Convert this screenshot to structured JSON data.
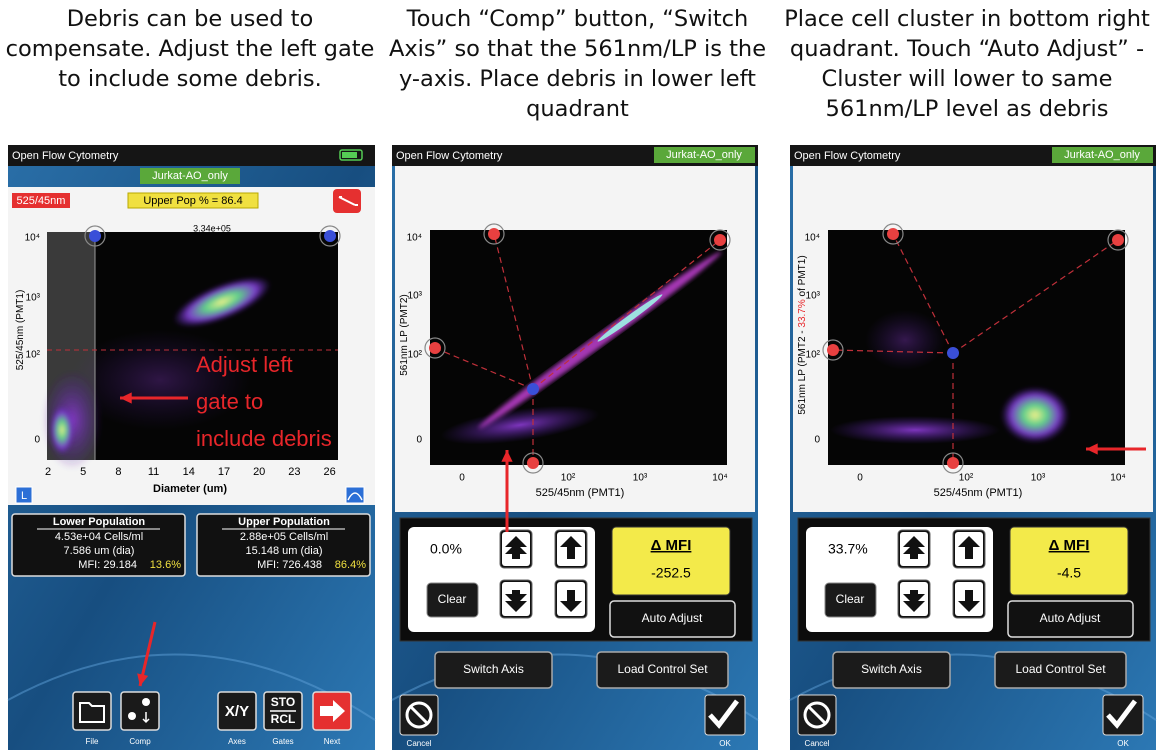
{
  "captions": [
    "Debris can be used to compensate.  Adjust the left gate to include some debris.",
    "Touch “Comp” button, “Switch Axis” so that the 561nm/LP is the y-axis.  Place debris in lower left quadrant",
    "Place cell cluster in bottom right quadrant.  Touch “Auto Adjust” - Cluster will lower to same 561nm/LP level as debris"
  ],
  "panels": [
    {
      "app_title": "Open Flow Cytometry",
      "sample": "Jurkat-AO_only",
      "channel": "525/45nm",
      "upper_pop": "Upper Pop % = 86.4",
      "plot": {
        "top_label": "3.34e+05",
        "y_label": [
          "525/45nm (PMT1)"
        ],
        "x_label": "Diameter (um)",
        "y_ticks": [
          "10⁴",
          "10³",
          "10²",
          "0"
        ],
        "x_ticks": [
          "2",
          "5",
          "8",
          "11",
          "14",
          "17",
          "20",
          "23",
          "26"
        ]
      },
      "annotation": [
        "Adjust left",
        "gate to",
        "include debris"
      ],
      "left_button": "L",
      "populations": [
        {
          "title": "Lower Population",
          "concentration": "4.53e+04 Cells/ml",
          "diameter": "7.586 um (dia)",
          "mfi": "MFI: 29.184",
          "percent": "13.6%"
        },
        {
          "title": "Upper Population",
          "concentration": "2.88e+05 Cells/ml",
          "diameter": "15.148 um (dia)",
          "mfi": "MFI: 726.438",
          "percent": "86.4%"
        }
      ],
      "toolbar": [
        {
          "label": "File"
        },
        {
          "label": "Comp"
        },
        {
          "icon": "X/Y",
          "label": "Axes"
        },
        {
          "icon": [
            "STO",
            "RCL"
          ],
          "label": "Gates"
        },
        {
          "label": "Next"
        }
      ]
    },
    {
      "app_title": "Open Flow Cytometry",
      "sample": "Jurkat-AO_only",
      "plot": {
        "y_label": [
          "561nm LP (PMT2)"
        ],
        "x_label": "525/45nm (PMT1)",
        "y_ticks": [
          "10⁴",
          "10³",
          "10²",
          "0"
        ],
        "x_ticks": [
          "0",
          "10²",
          "10³",
          "10⁴"
        ]
      },
      "comp": {
        "percent": "0.0%",
        "clear": "Clear",
        "mfi_title": "Δ MFI",
        "mfi_value": "-252.5",
        "auto_adjust": "Auto Adjust"
      },
      "buttons": [
        "Switch Axis",
        "Load Control Set"
      ],
      "cancel": "Cancel",
      "ok": "OK"
    },
    {
      "app_title": "Open Flow Cytometry",
      "sample": "Jurkat-AO_only",
      "plot": {
        "y_label": [
          "561nm LP (PMT2 - ",
          "33.7%",
          " of PMT1)"
        ],
        "x_label": "525/45nm (PMT1)",
        "y_ticks": [
          "10⁴",
          "10³",
          "10²",
          "0"
        ],
        "x_ticks": [
          "0",
          "10²",
          "10³",
          "10⁴"
        ]
      },
      "comp": {
        "percent": "33.7%",
        "clear": "Clear",
        "mfi_title": "Δ MFI",
        "mfi_value": "-4.5",
        "auto_adjust": "Auto Adjust"
      },
      "buttons": [
        "Switch Axis",
        "Load Control Set"
      ],
      "cancel": "Cancel",
      "ok": "OK"
    }
  ]
}
